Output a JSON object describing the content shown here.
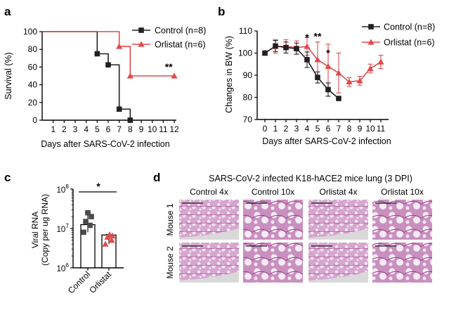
{
  "colors": {
    "control": "#231f20",
    "orlistat": "#e04a4a",
    "tissue": "#b14d9c",
    "scalebar": "#333333"
  },
  "chart_data": [
    {
      "panel": "a",
      "type": "line",
      "step": true,
      "xlabel": "Days after SARS-CoV-2 infection",
      "ylabel": "Survival (%)",
      "xticks": [
        "1",
        "2",
        "3",
        "4",
        "5",
        "6",
        "7",
        "8",
        "9",
        "10",
        "11",
        "12"
      ],
      "yticks": [
        "0",
        "20",
        "40",
        "60",
        "80",
        "100"
      ],
      "xlim": [
        0,
        12
      ],
      "ylim": [
        0,
        100
      ],
      "legend_position": "top-right",
      "series": [
        {
          "name": "Control (n=8)",
          "color_key": "control",
          "marker": "square",
          "x": [
            0,
            5,
            5,
            6,
            6,
            7,
            7,
            8,
            8
          ],
          "y": [
            100,
            100,
            75,
            75,
            62.5,
            62.5,
            12.5,
            12.5,
            0
          ],
          "marker_x": [
            5,
            6,
            7,
            8
          ],
          "marker_y": [
            75,
            62.5,
            12.5,
            0
          ]
        },
        {
          "name": "Orlistat (n=6)",
          "color_key": "orlistat",
          "marker": "triangle",
          "x": [
            0,
            7,
            7,
            8,
            8,
            12
          ],
          "y": [
            100,
            100,
            83.3,
            83.3,
            50,
            50
          ],
          "marker_x": [
            7,
            8,
            12
          ],
          "marker_y": [
            83.3,
            50,
            50
          ]
        }
      ],
      "annotations": [
        {
          "text": "**",
          "x": 11.5,
          "y": 50
        }
      ]
    },
    {
      "panel": "b",
      "type": "line",
      "xlabel": "Days after SARS-CoV-2 infection",
      "ylabel": "Changes in BW (%)",
      "xticks": [
        "0",
        "1",
        "2",
        "3",
        "4",
        "5",
        "6",
        "7",
        "8",
        "9",
        "10",
        "11"
      ],
      "yticks": [
        "70",
        "80",
        "90",
        "100",
        "110"
      ],
      "xlim": [
        0,
        11
      ],
      "ylim": [
        70,
        110
      ],
      "legend_position": "top-right",
      "series": [
        {
          "name": "Control (n=8)",
          "color_key": "control",
          "marker": "square",
          "x": [
            0,
            1,
            2,
            3,
            4,
            5,
            6,
            7
          ],
          "y": [
            100,
            103.2,
            102.5,
            102,
            97,
            89,
            83.5,
            79.5
          ],
          "err": [
            0,
            2.5,
            2.5,
            2.5,
            3.5,
            2.5,
            3,
            0
          ]
        },
        {
          "name": "Orlistat (n=6)",
          "color_key": "orlistat",
          "marker": "triangle",
          "x": [
            0,
            1,
            2,
            3,
            4,
            5,
            6,
            7,
            8,
            9,
            10,
            11
          ],
          "y": [
            100,
            103,
            103,
            102.5,
            103,
            97,
            94,
            91,
            87,
            87.5,
            93,
            96
          ],
          "err": [
            0,
            3,
            3,
            3,
            4,
            8,
            10,
            9,
            2,
            2,
            2,
            3
          ]
        }
      ],
      "annotations": [
        {
          "text": "*",
          "x": 4,
          "y": 105.5
        },
        {
          "text": "**",
          "x": 5,
          "y": 106
        },
        {
          "text": "*",
          "x": 6,
          "y": 98.5
        }
      ]
    },
    {
      "panel": "c",
      "type": "bar",
      "log_scale": true,
      "categories": [
        "Control",
        "Orlistat"
      ],
      "values": [
        12500000,
        6800000
      ],
      "points": [
        [
          8000000,
          12000000,
          15000000,
          20000000,
          25000000
        ],
        [
          4000000,
          5000000,
          6000000,
          6500000,
          7000000
        ]
      ],
      "ylabel": "Viral RNA (Copy per ug RNA)",
      "ylabel_lines": [
        "Viral RNA",
        "(Copy per ug RNA)"
      ],
      "ylim": [
        1000000,
        100000000
      ],
      "yticks": [
        {
          "base": "10",
          "exp": "6"
        },
        {
          "base": "10",
          "exp": "7"
        },
        {
          "base": "10",
          "exp": "8"
        }
      ],
      "annotations": [
        {
          "text": "*"
        }
      ]
    }
  ],
  "panel_d": {
    "title": "SARS-CoV-2 infected K18-hACE2 mice lung (3 DPI)",
    "columns": [
      "Control 4x",
      "Control 10x",
      "Orlistat 4x",
      "Orlistat 10x"
    ],
    "rows": [
      "Mouse 1",
      "Mouse 2"
    ]
  },
  "panel_labels": [
    "a",
    "b",
    "c",
    "d"
  ]
}
